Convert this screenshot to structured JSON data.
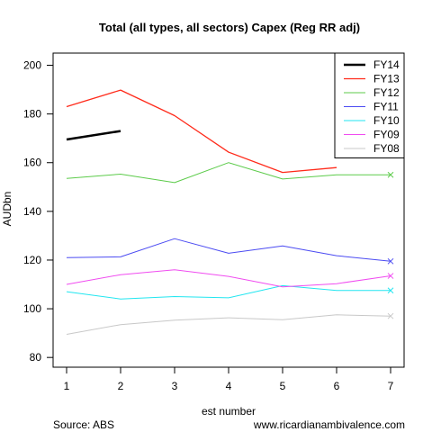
{
  "chart_data": {
    "type": "line",
    "title": "Total (all types, all sectors) Capex (Reg RR adj)",
    "xlabel": "est number",
    "ylabel": "AUDbn",
    "x": [
      1,
      2,
      3,
      4,
      5,
      6,
      7
    ],
    "xlim": [
      0.75,
      7.25
    ],
    "ylim": [
      76,
      205
    ],
    "y_ticks": [
      80,
      100,
      120,
      140,
      160,
      180,
      200
    ],
    "legend_position": "top-right",
    "series": [
      {
        "name": "FY14",
        "color": "#000000",
        "width": 2.5,
        "values": [
          169.5,
          173,
          null,
          null,
          null,
          null,
          null
        ],
        "marker_at_last": false
      },
      {
        "name": "FY13",
        "color": "#ff2a1a",
        "width": 1.3,
        "values": [
          183,
          189.8,
          179.3,
          164.3,
          156,
          158,
          null
        ],
        "marker_at_last": false
      },
      {
        "name": "FY12",
        "color": "#5ccb4a",
        "width": 1,
        "values": [
          153.5,
          155.3,
          151.8,
          160,
          153.3,
          155,
          155
        ],
        "marker_at_last": true
      },
      {
        "name": "FY11",
        "color": "#4b4bf2",
        "width": 1,
        "values": [
          121,
          121.3,
          128.8,
          122.8,
          125.8,
          121.8,
          119.5
        ],
        "marker_at_last": true
      },
      {
        "name": "FY10",
        "color": "#22e6f0",
        "width": 1,
        "values": [
          107,
          104,
          105,
          104.5,
          109.5,
          107.5,
          107.5
        ],
        "marker_at_last": true
      },
      {
        "name": "FY09",
        "color": "#f04cf0",
        "width": 1,
        "values": [
          110,
          114,
          116,
          113.3,
          109,
          110.3,
          113.5
        ],
        "marker_at_last": true
      },
      {
        "name": "FY08",
        "color": "#c8c8c8",
        "width": 1,
        "values": [
          89.5,
          93.5,
          95.3,
          96.3,
          95.5,
          97.5,
          97
        ],
        "marker_at_last": true
      }
    ]
  },
  "footer": {
    "source": "Source: ABS",
    "website": "www.ricardianambivalence.com"
  }
}
